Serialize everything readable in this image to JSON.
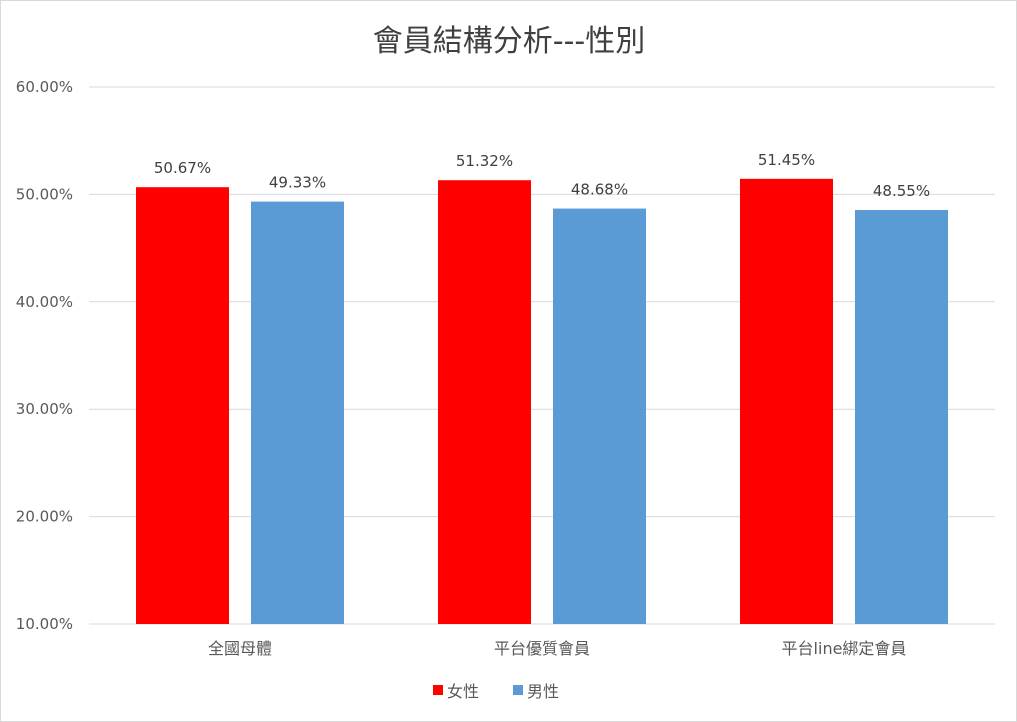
{
  "chart_data": {
    "type": "bar",
    "title": "會員結構分析---性別",
    "categories": [
      "全國母體",
      "平台優質會員",
      "平台line綁定會員"
    ],
    "series": [
      {
        "name": "女性",
        "color": "#ff0000",
        "values": [
          50.67,
          51.32,
          51.45
        ],
        "labels": [
          "50.67%",
          "51.32%",
          "51.45%"
        ]
      },
      {
        "name": "男性",
        "color": "#5b9bd5",
        "values": [
          49.33,
          48.68,
          48.55
        ],
        "labels": [
          "49.33%",
          "48.68%",
          "48.55%"
        ]
      }
    ],
    "ylim": [
      10,
      60
    ],
    "yticks": [
      "10.00%",
      "20.00%",
      "30.00%",
      "40.00%",
      "50.00%",
      "60.00%"
    ],
    "ytick_values": [
      10,
      20,
      30,
      40,
      50,
      60
    ],
    "grid": true,
    "legend": "bottom"
  }
}
